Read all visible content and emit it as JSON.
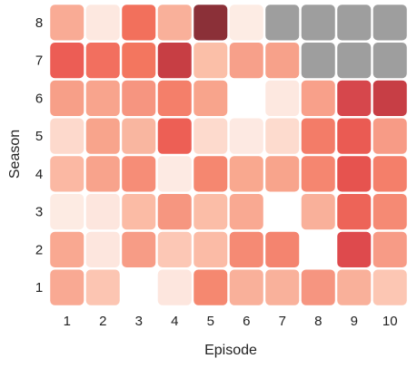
{
  "chart_data": {
    "type": "heatmap",
    "xlabel": "Episode",
    "ylabel": "Season",
    "x_categories": [
      "1",
      "2",
      "3",
      "4",
      "5",
      "6",
      "7",
      "8",
      "9",
      "10"
    ],
    "y_categories": [
      "8",
      "7",
      "6",
      "5",
      "4",
      "3",
      "2",
      "1"
    ],
    "rows": [
      {
        "season": "8",
        "cells": [
          {
            "episode": "1",
            "color": "#f9ab95"
          },
          {
            "episode": "2",
            "color": "#fde8e0"
          },
          {
            "episode": "3",
            "color": "#f2705c"
          },
          {
            "episode": "4",
            "color": "#f9b09a"
          },
          {
            "episode": "5",
            "color": "#8b3038"
          },
          {
            "episode": "6",
            "color": "#fdece4"
          },
          {
            "episode": "7",
            "color": "#9e9e9e"
          },
          {
            "episode": "8",
            "color": "#9e9e9e"
          },
          {
            "episode": "9",
            "color": "#9e9e9e"
          },
          {
            "episode": "10",
            "color": "#9e9e9e"
          }
        ]
      },
      {
        "season": "7",
        "cells": [
          {
            "episode": "1",
            "color": "#ec5d55"
          },
          {
            "episode": "2",
            "color": "#f26f5f"
          },
          {
            "episode": "3",
            "color": "#f3765f"
          },
          {
            "episode": "4",
            "color": "#c73e44"
          },
          {
            "episode": "5",
            "color": "#fbbfa8"
          },
          {
            "episode": "6",
            "color": "#f7a08a"
          },
          {
            "episode": "7",
            "color": "#f7a18a"
          },
          {
            "episode": "8",
            "color": "#9e9e9e"
          },
          {
            "episode": "9",
            "color": "#9e9e9e"
          },
          {
            "episode": "10",
            "color": "#9e9e9e"
          }
        ]
      },
      {
        "season": "6",
        "cells": [
          {
            "episode": "1",
            "color": "#f79f88"
          },
          {
            "episode": "2",
            "color": "#f8a48d"
          },
          {
            "episode": "3",
            "color": "#f69580"
          },
          {
            "episode": "4",
            "color": "#f47f6a"
          },
          {
            "episode": "5",
            "color": "#f8a48c"
          },
          {
            "episode": "6",
            "color": "#ffffff"
          },
          {
            "episode": "7",
            "color": "#fde8e0"
          },
          {
            "episode": "8",
            "color": "#f8a08a"
          },
          {
            "episode": "9",
            "color": "#d6474c"
          },
          {
            "episode": "10",
            "color": "#c73e45"
          }
        ]
      },
      {
        "season": "5",
        "cells": [
          {
            "episode": "1",
            "color": "#fdd9cc"
          },
          {
            "episode": "2",
            "color": "#f8a48c"
          },
          {
            "episode": "3",
            "color": "#f9b6a0"
          },
          {
            "episode": "4",
            "color": "#ed5f55"
          },
          {
            "episode": "5",
            "color": "#fddacd"
          },
          {
            "episode": "6",
            "color": "#fde9e2"
          },
          {
            "episode": "7",
            "color": "#fddbce"
          },
          {
            "episode": "8",
            "color": "#f37c68"
          },
          {
            "episode": "9",
            "color": "#ea5b53"
          },
          {
            "episode": "10",
            "color": "#f79b86"
          }
        ]
      },
      {
        "season": "4",
        "cells": [
          {
            "episode": "1",
            "color": "#fbb8a3"
          },
          {
            "episode": "2",
            "color": "#f8a38c"
          },
          {
            "episode": "3",
            "color": "#f68d77"
          },
          {
            "episode": "4",
            "color": "#fdeae3"
          },
          {
            "episode": "5",
            "color": "#f58770"
          },
          {
            "episode": "6",
            "color": "#f9a88f"
          },
          {
            "episode": "7",
            "color": "#f8a48c"
          },
          {
            "episode": "8",
            "color": "#f58670"
          },
          {
            "episode": "9",
            "color": "#e6534f"
          },
          {
            "episode": "10",
            "color": "#f47f6a"
          }
        ]
      },
      {
        "season": "3",
        "cells": [
          {
            "episode": "1",
            "color": "#fdebe3"
          },
          {
            "episode": "2",
            "color": "#fde6de"
          },
          {
            "episode": "3",
            "color": "#fbbba5"
          },
          {
            "episode": "4",
            "color": "#f69680"
          },
          {
            "episode": "5",
            "color": "#fbbda7"
          },
          {
            "episode": "6",
            "color": "#f9a992"
          },
          {
            "episode": "7",
            "color": "#ffffff"
          },
          {
            "episode": "8",
            "color": "#f9b09a"
          },
          {
            "episode": "9",
            "color": "#ed6458"
          },
          {
            "episode": "10",
            "color": "#f58a74"
          }
        ]
      },
      {
        "season": "2",
        "cells": [
          {
            "episode": "1",
            "color": "#f9a891"
          },
          {
            "episode": "2",
            "color": "#fde6de"
          },
          {
            "episode": "3",
            "color": "#f79c86"
          },
          {
            "episode": "4",
            "color": "#fcc7b5"
          },
          {
            "episode": "5",
            "color": "#fbbba6"
          },
          {
            "episode": "6",
            "color": "#f58a74"
          },
          {
            "episode": "7",
            "color": "#f4846f"
          },
          {
            "episode": "8",
            "color": "#ffffff"
          },
          {
            "episode": "9",
            "color": "#de4a4d"
          },
          {
            "episode": "10",
            "color": "#f79b86"
          }
        ]
      },
      {
        "season": "1",
        "cells": [
          {
            "episode": "1",
            "color": "#f9a993"
          },
          {
            "episode": "2",
            "color": "#fcc5b2"
          },
          {
            "episode": "3",
            "color": "#ffffff"
          },
          {
            "episode": "4",
            "color": "#fde6de"
          },
          {
            "episode": "5",
            "color": "#f58870"
          },
          {
            "episode": "6",
            "color": "#f9b09a"
          },
          {
            "episode": "7",
            "color": "#f9b19b"
          },
          {
            "episode": "8",
            "color": "#f69580"
          },
          {
            "episode": "9",
            "color": "#f9b09a"
          },
          {
            "episode": "10",
            "color": "#fcc6b3"
          }
        ]
      }
    ]
  }
}
